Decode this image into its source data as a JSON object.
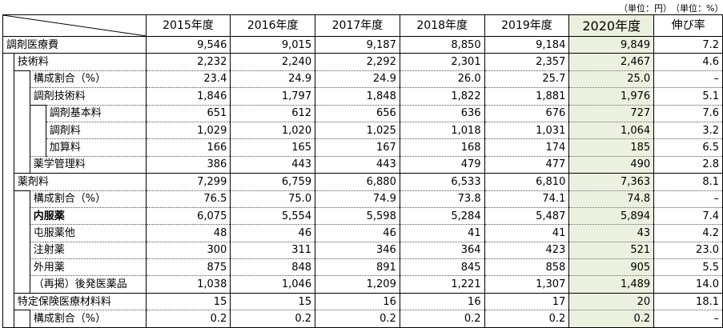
{
  "units": {
    "yen": "（単位：円）",
    "pct": "（単位：%）"
  },
  "headers": [
    "2015年度",
    "2016年度",
    "2017年度",
    "2018年度",
    "2019年度",
    "2020年度",
    "伸び率"
  ],
  "rows": [
    {
      "label": "調剤医療費",
      "level": 0,
      "values": [
        "9,546",
        "9,015",
        "9,187",
        "8,850",
        "9,184",
        "9,849",
        "7.2"
      ]
    },
    {
      "label": "技術料",
      "level": 1,
      "values": [
        "2,232",
        "2,240",
        "2,292",
        "2,301",
        "2,357",
        "2,467",
        "4.6"
      ]
    },
    {
      "label": "構成割合（%）",
      "level": 2,
      "values": [
        "23.4",
        "24.9",
        "24.9",
        "26.0",
        "25.7",
        "25.0",
        "–"
      ]
    },
    {
      "label": "調剤技術料",
      "level": 2,
      "values": [
        "1,846",
        "1,797",
        "1,848",
        "1,822",
        "1,881",
        "1,976",
        "5.1"
      ]
    },
    {
      "label": "調剤基本料",
      "level": 3,
      "values": [
        "651",
        "612",
        "656",
        "636",
        "676",
        "727",
        "7.6"
      ]
    },
    {
      "label": "調剤料",
      "level": 3,
      "values": [
        "1,029",
        "1,020",
        "1,025",
        "1,018",
        "1,031",
        "1,064",
        "3.2"
      ]
    },
    {
      "label": "加算料",
      "level": 3,
      "values": [
        "166",
        "165",
        "167",
        "168",
        "174",
        "185",
        "6.5"
      ]
    },
    {
      "label": "薬学管理料",
      "level": 2,
      "values": [
        "386",
        "443",
        "443",
        "479",
        "477",
        "490",
        "2.8"
      ]
    },
    {
      "label": "薬剤料",
      "level": 1,
      "values": [
        "7,299",
        "6,759",
        "6,880",
        "6,533",
        "6,810",
        "7,363",
        "8.1"
      ]
    },
    {
      "label": "構成割合（%）",
      "level": 2,
      "values": [
        "76.5",
        "75.0",
        "74.9",
        "73.8",
        "74.1",
        "74.8",
        "–"
      ]
    },
    {
      "label": "内服薬",
      "level": 2,
      "bold": true,
      "values": [
        "6,075",
        "5,554",
        "5,598",
        "5,284",
        "5,487",
        "5,894",
        "7.4"
      ]
    },
    {
      "label": "屯服薬他",
      "level": 2,
      "values": [
        "48",
        "46",
        "46",
        "41",
        "41",
        "43",
        "4.2"
      ]
    },
    {
      "label": "注射薬",
      "level": 2,
      "values": [
        "300",
        "311",
        "346",
        "364",
        "423",
        "521",
        "23.0"
      ]
    },
    {
      "label": "外用薬",
      "level": 2,
      "values": [
        "875",
        "848",
        "891",
        "845",
        "858",
        "905",
        "5.5"
      ]
    },
    {
      "label": "（再掲）後発医薬品",
      "level": 2,
      "values": [
        "1,038",
        "1,046",
        "1,209",
        "1,221",
        "1,307",
        "1,489",
        "14.0"
      ]
    },
    {
      "label": "特定保険医療材料料",
      "level": 1,
      "values": [
        "15",
        "15",
        "16",
        "16",
        "17",
        "20",
        "18.1"
      ]
    },
    {
      "label": "構成割合（%）",
      "level": 2,
      "values": [
        "0.2",
        "0.2",
        "0.2",
        "0.2",
        "0.2",
        "0.2",
        "–"
      ]
    }
  ],
  "colors": {
    "highlight": "#ebf1de",
    "border": "#000000"
  }
}
